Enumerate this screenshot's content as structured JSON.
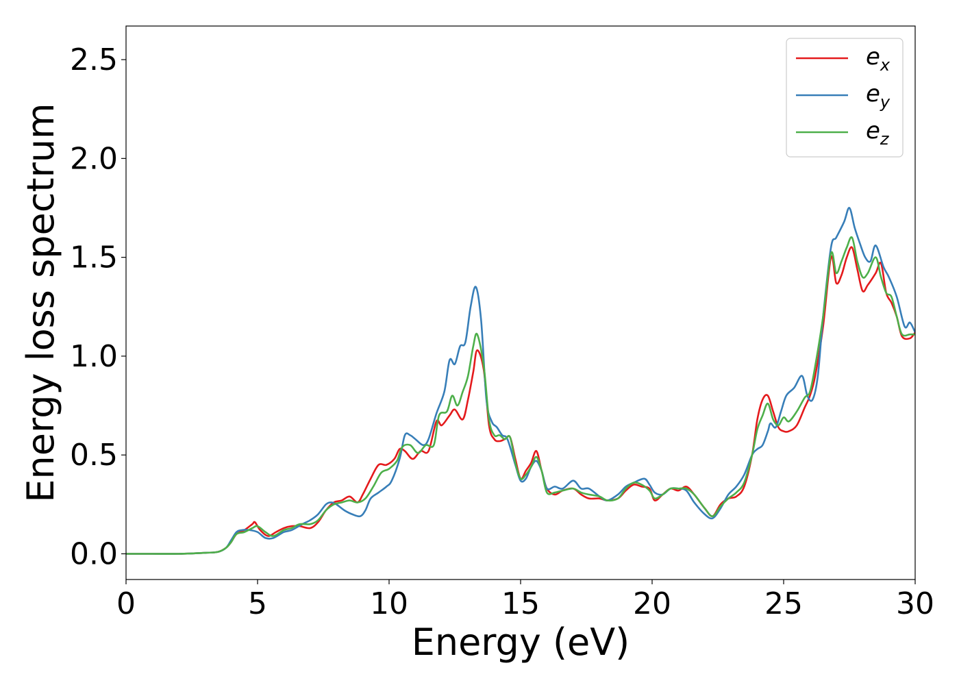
{
  "chart_data": {
    "type": "line",
    "xlabel": "Energy (eV)",
    "ylabel": "Energy loss spectrum",
    "xlim": [
      0,
      30
    ],
    "ylim": [
      -0.13,
      2.67
    ],
    "xticks": [
      0,
      5,
      10,
      15,
      20,
      25,
      30
    ],
    "xtick_labels": [
      "0",
      "5",
      "10",
      "15",
      "20",
      "25",
      "30"
    ],
    "yticks": [
      0.0,
      0.5,
      1.0,
      1.5,
      2.0,
      2.5
    ],
    "ytick_labels": [
      "0.0",
      "0.5",
      "1.0",
      "1.5",
      "2.0",
      "2.5"
    ],
    "grid": false,
    "legend_position": "top-right",
    "series": [
      {
        "name": "e_x",
        "label_main": "e",
        "label_sub": "x",
        "color": "#e41a1c",
        "x": [
          0,
          1,
          2,
          3,
          3.5,
          3.8,
          4.0,
          4.2,
          4.5,
          4.8,
          4.9,
          5.1,
          5.4,
          5.7,
          6.0,
          6.3,
          6.6,
          7.0,
          7.3,
          7.6,
          7.9,
          8.2,
          8.5,
          8.8,
          9.0,
          9.3,
          9.6,
          9.9,
          10.2,
          10.4,
          10.6,
          10.9,
          11.2,
          11.5,
          11.8,
          12.0,
          12.3,
          12.5,
          12.8,
          13.0,
          13.2,
          13.35,
          13.6,
          13.8,
          14.0,
          14.2,
          14.4,
          14.6,
          14.8,
          15.0,
          15.2,
          15.4,
          15.6,
          15.8,
          16.0,
          16.3,
          16.6,
          17.0,
          17.3,
          17.6,
          18.0,
          18.3,
          18.7,
          19.0,
          19.3,
          19.6,
          19.9,
          20.1,
          20.4,
          20.7,
          21.0,
          21.3,
          21.6,
          22.0,
          22.3,
          22.6,
          22.9,
          23.2,
          23.5,
          23.8,
          24.0,
          24.2,
          24.4,
          24.6,
          24.8,
          25.0,
          25.2,
          25.5,
          25.8,
          26.0,
          26.2,
          26.5,
          26.8,
          27.0,
          27.2,
          27.4,
          27.6,
          27.8,
          28.0,
          28.2,
          28.5,
          28.7,
          28.9,
          29.1,
          29.3,
          29.5,
          29.8,
          30.0
        ],
        "y": [
          0.0,
          0.0,
          0.0,
          0.005,
          0.01,
          0.03,
          0.06,
          0.1,
          0.12,
          0.15,
          0.16,
          0.12,
          0.09,
          0.11,
          0.13,
          0.14,
          0.14,
          0.13,
          0.16,
          0.22,
          0.26,
          0.27,
          0.29,
          0.26,
          0.3,
          0.38,
          0.45,
          0.45,
          0.48,
          0.53,
          0.52,
          0.48,
          0.52,
          0.52,
          0.67,
          0.65,
          0.7,
          0.73,
          0.68,
          0.78,
          0.92,
          1.03,
          0.93,
          0.65,
          0.58,
          0.57,
          0.58,
          0.59,
          0.48,
          0.38,
          0.42,
          0.46,
          0.52,
          0.42,
          0.33,
          0.3,
          0.32,
          0.33,
          0.3,
          0.28,
          0.28,
          0.27,
          0.28,
          0.32,
          0.35,
          0.34,
          0.33,
          0.27,
          0.3,
          0.33,
          0.32,
          0.34,
          0.3,
          0.23,
          0.19,
          0.25,
          0.28,
          0.29,
          0.34,
          0.5,
          0.68,
          0.78,
          0.8,
          0.72,
          0.64,
          0.62,
          0.62,
          0.65,
          0.74,
          0.8,
          0.9,
          1.15,
          1.5,
          1.37,
          1.41,
          1.5,
          1.55,
          1.44,
          1.33,
          1.36,
          1.42,
          1.47,
          1.32,
          1.27,
          1.2,
          1.1,
          1.09,
          1.12
        ]
      },
      {
        "name": "e_y",
        "label_main": "e",
        "label_sub": "y",
        "color": "#377eb8",
        "x": [
          0,
          1,
          2,
          3,
          3.5,
          3.8,
          4.0,
          4.2,
          4.4,
          4.7,
          5.0,
          5.3,
          5.6,
          6.0,
          6.3,
          6.7,
          7.0,
          7.3,
          7.6,
          7.8,
          8.0,
          8.3,
          8.6,
          8.9,
          9.1,
          9.3,
          9.6,
          9.9,
          10.1,
          10.4,
          10.6,
          10.8,
          11.0,
          11.3,
          11.5,
          11.8,
          12.1,
          12.3,
          12.5,
          12.7,
          12.9,
          13.1,
          13.3,
          13.5,
          13.7,
          13.9,
          14.1,
          14.3,
          14.5,
          14.8,
          15.0,
          15.2,
          15.4,
          15.6,
          15.8,
          16.0,
          16.3,
          16.6,
          17.0,
          17.3,
          17.6,
          18.0,
          18.3,
          18.7,
          19.0,
          19.3,
          19.7,
          19.9,
          20.1,
          20.4,
          20.7,
          21.0,
          21.3,
          21.6,
          22.0,
          22.3,
          22.6,
          22.9,
          23.2,
          23.5,
          23.8,
          24.0,
          24.2,
          24.4,
          24.5,
          24.7,
          24.9,
          25.1,
          25.4,
          25.7,
          25.9,
          26.1,
          26.3,
          26.5,
          26.8,
          27.0,
          27.3,
          27.5,
          27.7,
          27.9,
          28.1,
          28.3,
          28.5,
          28.8,
          29.0,
          29.3,
          29.6,
          29.8,
          30.0
        ],
        "y": [
          0.0,
          0.0,
          0.0,
          0.005,
          0.01,
          0.03,
          0.07,
          0.11,
          0.12,
          0.12,
          0.11,
          0.08,
          0.08,
          0.11,
          0.12,
          0.15,
          0.17,
          0.2,
          0.25,
          0.26,
          0.25,
          0.22,
          0.2,
          0.19,
          0.22,
          0.28,
          0.31,
          0.34,
          0.37,
          0.48,
          0.6,
          0.6,
          0.58,
          0.55,
          0.58,
          0.71,
          0.82,
          0.98,
          0.96,
          1.05,
          1.07,
          1.25,
          1.35,
          1.18,
          0.78,
          0.67,
          0.64,
          0.6,
          0.58,
          0.45,
          0.37,
          0.38,
          0.44,
          0.47,
          0.42,
          0.33,
          0.34,
          0.33,
          0.37,
          0.33,
          0.33,
          0.29,
          0.27,
          0.3,
          0.34,
          0.36,
          0.38,
          0.35,
          0.31,
          0.3,
          0.33,
          0.33,
          0.32,
          0.26,
          0.2,
          0.18,
          0.23,
          0.3,
          0.34,
          0.4,
          0.5,
          0.53,
          0.55,
          0.62,
          0.66,
          0.64,
          0.72,
          0.8,
          0.84,
          0.9,
          0.8,
          0.78,
          0.9,
          1.2,
          1.55,
          1.6,
          1.68,
          1.75,
          1.65,
          1.57,
          1.5,
          1.48,
          1.56,
          1.45,
          1.4,
          1.3,
          1.15,
          1.17,
          1.12
        ]
      },
      {
        "name": "e_z",
        "label_main": "e",
        "label_sub": "z",
        "color": "#4daf4a",
        "x": [
          0,
          1,
          2,
          3,
          3.5,
          3.8,
          4.0,
          4.2,
          4.5,
          4.8,
          5.0,
          5.3,
          5.6,
          6.0,
          6.3,
          6.6,
          7.0,
          7.3,
          7.6,
          7.9,
          8.2,
          8.5,
          8.8,
          9.1,
          9.4,
          9.7,
          10.0,
          10.3,
          10.5,
          10.8,
          11.1,
          11.4,
          11.7,
          11.9,
          12.2,
          12.4,
          12.6,
          12.8,
          13.0,
          13.2,
          13.35,
          13.6,
          13.8,
          14.0,
          14.2,
          14.4,
          14.6,
          14.8,
          15.0,
          15.2,
          15.4,
          15.6,
          15.8,
          16.0,
          16.3,
          16.6,
          17.0,
          17.3,
          17.6,
          18.0,
          18.3,
          18.7,
          19.0,
          19.3,
          19.6,
          19.9,
          20.1,
          20.4,
          20.7,
          21.0,
          21.3,
          21.6,
          22.0,
          22.3,
          22.6,
          22.9,
          23.2,
          23.5,
          23.8,
          24.0,
          24.2,
          24.4,
          24.6,
          24.8,
          25.0,
          25.2,
          25.5,
          25.8,
          26.0,
          26.2,
          26.5,
          26.8,
          27.0,
          27.2,
          27.4,
          27.6,
          27.8,
          28.0,
          28.2,
          28.5,
          28.7,
          28.9,
          29.1,
          29.3,
          29.5,
          29.8,
          30.0
        ],
        "y": [
          0.0,
          0.0,
          0.0,
          0.005,
          0.01,
          0.03,
          0.06,
          0.1,
          0.11,
          0.13,
          0.14,
          0.11,
          0.09,
          0.12,
          0.13,
          0.15,
          0.15,
          0.17,
          0.22,
          0.25,
          0.26,
          0.27,
          0.26,
          0.28,
          0.34,
          0.41,
          0.43,
          0.47,
          0.54,
          0.55,
          0.51,
          0.55,
          0.55,
          0.7,
          0.72,
          0.8,
          0.75,
          0.82,
          0.9,
          1.05,
          1.11,
          0.95,
          0.68,
          0.6,
          0.6,
          0.58,
          0.59,
          0.46,
          0.38,
          0.4,
          0.44,
          0.49,
          0.42,
          0.31,
          0.31,
          0.32,
          0.33,
          0.31,
          0.3,
          0.29,
          0.27,
          0.28,
          0.33,
          0.36,
          0.35,
          0.32,
          0.28,
          0.3,
          0.33,
          0.33,
          0.33,
          0.3,
          0.23,
          0.19,
          0.24,
          0.28,
          0.31,
          0.36,
          0.5,
          0.63,
          0.7,
          0.76,
          0.68,
          0.65,
          0.69,
          0.67,
          0.72,
          0.79,
          0.82,
          0.95,
          1.2,
          1.52,
          1.42,
          1.48,
          1.55,
          1.6,
          1.48,
          1.4,
          1.42,
          1.5,
          1.4,
          1.32,
          1.3,
          1.2,
          1.11,
          1.11,
          1.11
        ]
      }
    ]
  }
}
